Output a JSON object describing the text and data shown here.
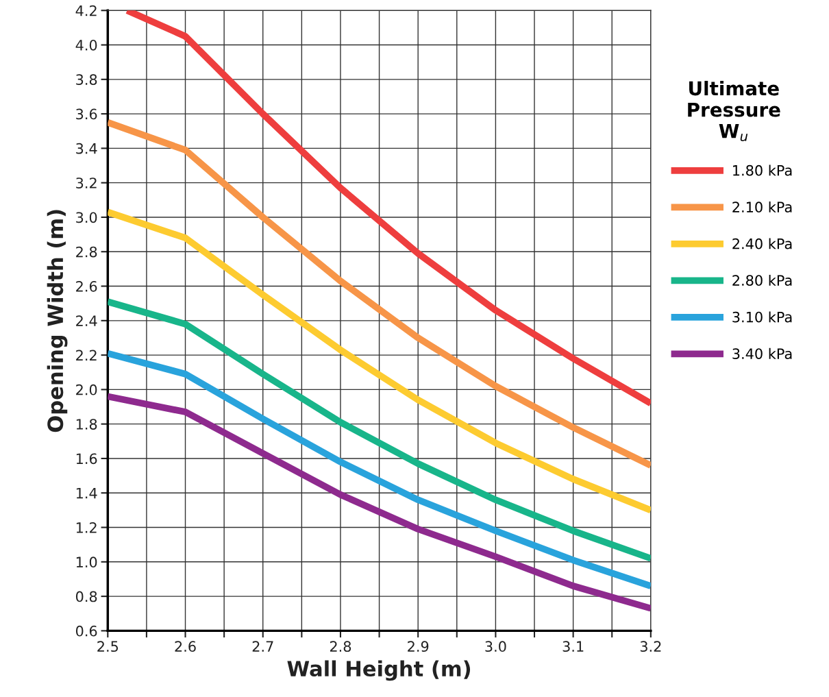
{
  "chart_data": {
    "type": "line",
    "xlabel": "Wall Height (m)",
    "ylabel": "Opening Width (m)",
    "legend_title": "Ultimate\nPressure\nW$_{u}$",
    "legend": "right",
    "grid": true,
    "marker": "none",
    "line_style": "solid",
    "x": [
      2.5,
      2.6,
      2.7,
      2.8,
      2.9,
      3.0,
      3.1,
      3.2
    ],
    "xlim": [
      2.5,
      3.2
    ],
    "ylim": [
      0.6,
      4.2
    ],
    "xticks": [
      2.5,
      {
        "value": 2.55,
        "label": null
      },
      2.6,
      {
        "value": 2.65,
        "label": null
      },
      2.7,
      {
        "value": 2.75,
        "label": null
      },
      2.8,
      {
        "value": 2.85,
        "label": null
      },
      2.9,
      {
        "value": 2.95,
        "label": null
      },
      {
        "value": 3.0,
        "label": "3.0"
      },
      {
        "value": 3.05,
        "label": null
      },
      3.1,
      {
        "value": 3.15,
        "label": null
      },
      3.2
    ],
    "yticks": [
      0.6,
      0.8,
      {
        "value": 1.0,
        "label": "1.0"
      },
      1.2,
      1.4,
      1.6,
      1.8,
      {
        "value": 2.0,
        "label": "2.0"
      },
      2.2,
      2.4,
      2.6,
      2.8,
      {
        "value": 3.0,
        "label": "3.0"
      },
      3.2,
      3.4,
      3.6,
      3.8,
      {
        "value": 4.0,
        "label": "4.0"
      },
      4.2
    ],
    "series": [
      {
        "name": "1.80 kPa",
        "color": "#ee3e3e",
        "x": [
          2.525,
          2.6,
          2.7,
          2.8,
          2.9,
          3.0,
          3.1,
          3.2
        ],
        "values": [
          4.2,
          4.05,
          3.6,
          3.17,
          2.79,
          2.46,
          2.18,
          1.92
        ]
      },
      {
        "name": "2.10 kPa",
        "color": "#f79548",
        "values": [
          3.55,
          3.39,
          3.0,
          2.63,
          2.3,
          2.02,
          1.78,
          1.56
        ]
      },
      {
        "name": "2.40 kPa",
        "color": "#fdcb30",
        "values": [
          3.03,
          2.88,
          2.55,
          2.23,
          1.94,
          1.69,
          1.48,
          1.3
        ]
      },
      {
        "name": "2.80 kPa",
        "color": "#18b58a",
        "values": [
          2.51,
          2.38,
          2.09,
          1.81,
          1.57,
          1.36,
          1.18,
          1.02
        ]
      },
      {
        "name": "3.10 kPa",
        "color": "#29a3dc",
        "values": [
          2.21,
          2.09,
          1.83,
          1.58,
          1.36,
          1.18,
          1.01,
          0.86
        ]
      },
      {
        "name": "3.40 kPa",
        "color": "#8e2a8e",
        "values": [
          1.96,
          1.87,
          1.63,
          1.39,
          1.19,
          1.03,
          0.86,
          0.73
        ]
      }
    ]
  }
}
